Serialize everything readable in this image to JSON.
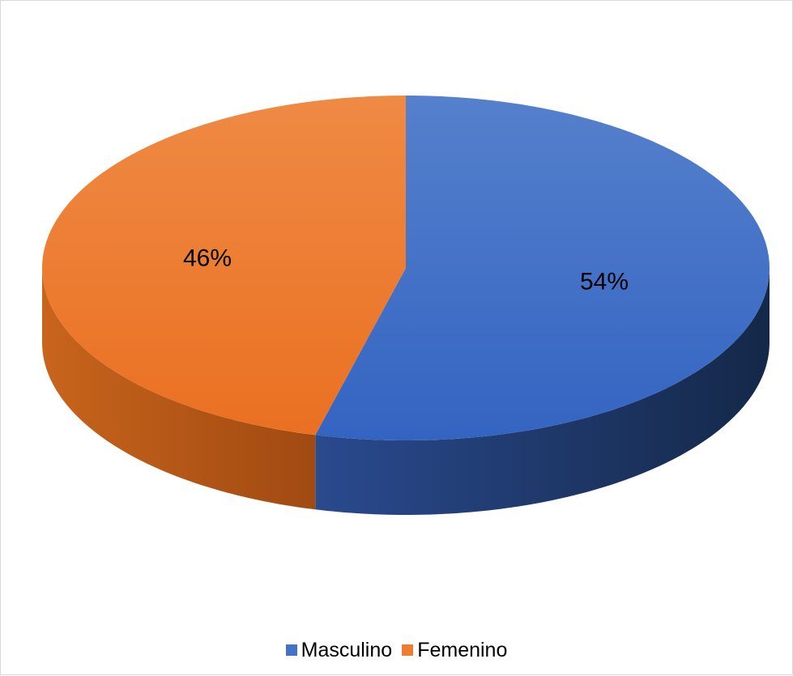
{
  "chart_data": {
    "type": "pie",
    "title": "",
    "categories": [
      "Masculino",
      "Femenino"
    ],
    "values": [
      54,
      46
    ],
    "data_labels": [
      "54%",
      "46%"
    ],
    "colors": [
      "#4472c4",
      "#ed7d31"
    ],
    "legend_position": "bottom",
    "style": "3d"
  }
}
